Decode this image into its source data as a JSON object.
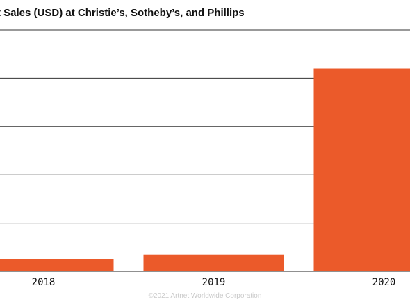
{
  "chart_data": {
    "type": "bar",
    "title": "t Sales (USD) at Christie’s, Sotheby’s, and Phillips",
    "categories": [
      "2018",
      "2019",
      "2020"
    ],
    "values": [
      0.25,
      0.35,
      4.2
    ],
    "ylim": [
      0,
      5
    ],
    "grid": true,
    "bar_color": "#eb5a2a",
    "footer": "©2021 Artnet Worldwide Corporation"
  }
}
